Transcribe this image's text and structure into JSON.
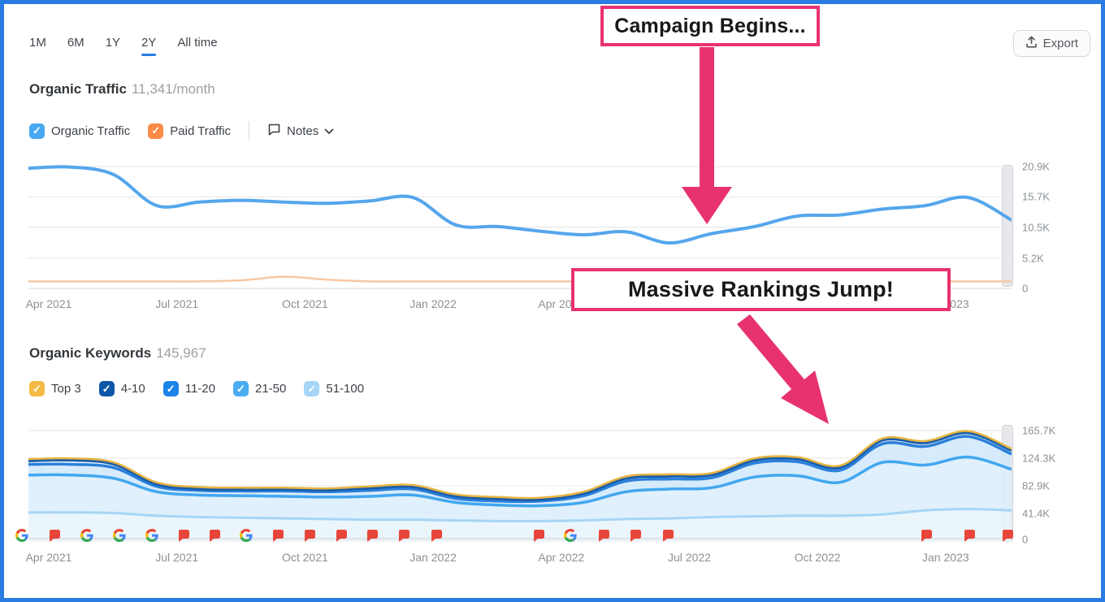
{
  "toolbar": {
    "tabs": [
      {
        "label": "1M",
        "active": false
      },
      {
        "label": "6M",
        "active": false
      },
      {
        "label": "1Y",
        "active": false
      },
      {
        "label": "2Y",
        "active": true
      },
      {
        "label": "All time",
        "active": false
      }
    ],
    "export_label": "Export"
  },
  "traffic_section": {
    "title": "Organic Traffic",
    "value": "11,341/month",
    "legend": [
      {
        "label": "Organic Traffic",
        "color": "#47a9f1",
        "checked": true
      },
      {
        "label": "Paid Traffic",
        "color": "#fb8b46",
        "checked": true
      }
    ],
    "notes_label": "Notes"
  },
  "keywords_section": {
    "title": "Organic Keywords",
    "value": "145,967",
    "legend": [
      {
        "label": "Top 3",
        "color": "#f4ba45",
        "checked": true
      },
      {
        "label": "4-10",
        "color": "#0e57a8",
        "checked": true
      },
      {
        "label": "11-20",
        "color": "#1b84e8",
        "checked": true
      },
      {
        "label": "21-50",
        "color": "#4aadf2",
        "checked": true
      },
      {
        "label": "51-100",
        "color": "#a5d6f7",
        "checked": true
      }
    ]
  },
  "callouts": {
    "campaign": "Campaign Begins...",
    "rankings": "Massive Rankings Jump!",
    "accent": "#e8326f"
  },
  "chart_data": [
    {
      "type": "line",
      "title": "Organic Traffic",
      "subtitle": "11,341/month",
      "categories": [
        "Apr 2021",
        "May 2021",
        "Jun 2021",
        "Jul 2021",
        "Aug 2021",
        "Sep 2021",
        "Oct 2021",
        "Nov 2021",
        "Dec 2021",
        "Jan 2022",
        "Feb 2022",
        "Mar 2022",
        "Apr 2022",
        "May 2022",
        "Jun 2022",
        "Jul 2022",
        "Aug 2022",
        "Sep 2022",
        "Oct 2022",
        "Nov 2022",
        "Dec 2022",
        "Jan 2023",
        "Feb 2023",
        "Mar 2023"
      ],
      "x_tick_every": 3,
      "ylim": [
        0,
        22150
      ],
      "yticks": [
        {
          "v": 20900,
          "label": "20.9K"
        },
        {
          "v": 15700,
          "label": "15.7K"
        },
        {
          "v": 10500,
          "label": "10.5K"
        },
        {
          "v": 5200,
          "label": "5.2K"
        },
        {
          "v": 0,
          "label": "0"
        }
      ],
      "series": [
        {
          "name": "Paid Traffic",
          "color": "#f6c8a4",
          "width": 2.5,
          "values": [
            1200,
            1200,
            1200,
            1200,
            1200,
            1400,
            2000,
            1500,
            1200,
            1200,
            1200,
            1200,
            1200,
            1200,
            1200,
            1200,
            1200,
            1200,
            1200,
            1200,
            1200,
            1200,
            1200,
            1200
          ]
        },
        {
          "name": "Organic Traffic",
          "color": "#55a6ec",
          "width": 4,
          "values": [
            20600,
            20800,
            19500,
            14200,
            14800,
            15100,
            14800,
            14600,
            15000,
            15600,
            10900,
            10600,
            9800,
            9200,
            9700,
            7800,
            9400,
            10600,
            12400,
            12600,
            13600,
            14200,
            15600,
            11800
          ]
        }
      ]
    },
    {
      "type": "stacked_area",
      "title": "Organic Keywords",
      "subtitle": "145,967",
      "categories": [
        "Apr 2021",
        "May 2021",
        "Jun 2021",
        "Jul 2021",
        "Aug 2021",
        "Sep 2021",
        "Oct 2021",
        "Nov 2021",
        "Dec 2021",
        "Jan 2022",
        "Feb 2022",
        "Mar 2022",
        "Apr 2022",
        "May 2022",
        "Jun 2022",
        "Jul 2022",
        "Aug 2022",
        "Sep 2022",
        "Oct 2022",
        "Nov 2022",
        "Dec 2022",
        "Jan 2023",
        "Feb 2023",
        "Mar 2023"
      ],
      "x_tick_every": 3,
      "ylim": [
        0,
        180300
      ],
      "yticks": [
        {
          "v": 165700,
          "label": "165.7K"
        },
        {
          "v": 124300,
          "label": "124.3K"
        },
        {
          "v": 82900,
          "label": "82.9K"
        },
        {
          "v": 41400,
          "label": "41.4K"
        },
        {
          "v": 0,
          "label": "0"
        }
      ],
      "stack_order_note": "bottom to top",
      "series": [
        {
          "name": "51-100",
          "line": "#a5d6f5",
          "fill": "#e8f3fc",
          "lw": 3,
          "values": [
            43000,
            43000,
            42000,
            38000,
            36000,
            35000,
            34000,
            33000,
            32000,
            32000,
            31000,
            30000,
            30000,
            31000,
            33000,
            34000,
            36000,
            37000,
            38000,
            38000,
            40000,
            46000,
            48000,
            46000
          ]
        },
        {
          "name": "21-50",
          "line": "#42a7ef",
          "fill": "#dbedfb",
          "lw": 3.5,
          "values": [
            56000,
            56000,
            52000,
            36000,
            33000,
            33000,
            33000,
            33000,
            35000,
            37000,
            27000,
            24000,
            23000,
            27000,
            41000,
            44000,
            44000,
            59000,
            60000,
            50000,
            78000,
            68000,
            78000,
            62000
          ]
        },
        {
          "name": "11-20",
          "line": "#2b80da",
          "fill": "#cfe7fa",
          "lw": 3.5,
          "values": [
            16000,
            16000,
            16000,
            8000,
            7000,
            7000,
            8000,
            8000,
            9000,
            9000,
            6000,
            6000,
            7000,
            10000,
            16000,
            15000,
            15000,
            21000,
            21000,
            18000,
            28000,
            28000,
            31000,
            23000
          ]
        },
        {
          "name": "4-10",
          "line": "#195ead",
          "fill": "#eaf3fb",
          "lw": 4.5,
          "values": [
            6000,
            7000,
            6000,
            4000,
            3000,
            3000,
            3000,
            3000,
            4000,
            4000,
            4000,
            4000,
            3000,
            4000,
            5000,
            5000,
            5000,
            5000,
            5000,
            5000,
            6000,
            6000,
            6000,
            6000
          ]
        },
        {
          "name": "Top 3",
          "line": "#e7b43e",
          "fill": "#f5d06c",
          "lw": 2.5,
          "values": [
            2000,
            2000,
            2000,
            2000,
            2000,
            2000,
            2000,
            2000,
            2000,
            2000,
            2000,
            2000,
            2000,
            2000,
            2000,
            2000,
            2000,
            2000,
            2000,
            2000,
            2000,
            2000,
            2000,
            2000
          ]
        }
      ],
      "markers": [
        [
          "google",
          27
        ],
        [
          "flag",
          67
        ],
        [
          "google",
          107
        ],
        [
          "google",
          147
        ],
        [
          "google",
          187
        ],
        [
          "flag",
          226
        ],
        [
          "flag",
          264
        ],
        [
          "google",
          303
        ],
        [
          "flag",
          342
        ],
        [
          "flag",
          381
        ],
        [
          "flag",
          420
        ],
        [
          "flag",
          458
        ],
        [
          "flag",
          497
        ],
        [
          "flag",
          537
        ],
        [
          "flag",
          663
        ],
        [
          "google",
          702
        ],
        [
          "flag",
          743
        ],
        [
          "flag",
          782
        ],
        [
          "flag",
          822
        ],
        [
          "flag",
          1140
        ],
        [
          "flag",
          1193
        ],
        [
          "flag",
          1240
        ]
      ]
    }
  ]
}
